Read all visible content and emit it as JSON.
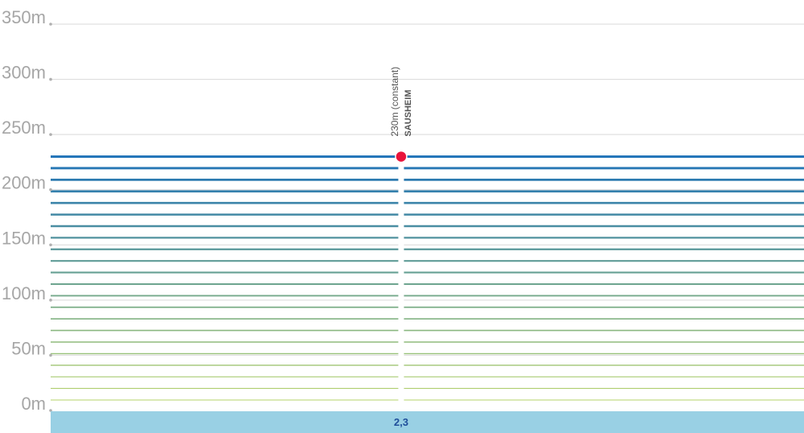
{
  "chart_data": {
    "type": "area",
    "title": "",
    "xlabel": "",
    "ylabel": "",
    "ylim": [
      0,
      350
    ],
    "y_ticks": [
      0,
      50,
      100,
      150,
      200,
      250,
      300,
      350
    ],
    "y_tick_labels": [
      "0m",
      "50m",
      "100m",
      "150m",
      "200m",
      "250m",
      "300m",
      "350m"
    ],
    "grid": true,
    "x_label": "2,3",
    "x_range": [
      0,
      2.3
    ],
    "series": [
      {
        "x": [
          0,
          2.3
        ],
        "y": [
          230,
          230
        ]
      }
    ],
    "annotation": {
      "x": 1.07,
      "y": 230,
      "value_label": "230m (constant)",
      "name": "SAUSHEIM"
    },
    "colors": {
      "grid": "#d9d9d9",
      "tick_label": "#a6a6a6",
      "band_top": "#1f72b8",
      "band_bottom": "#b5d36a",
      "marker": "#e8143c",
      "footer": "#99d0e4",
      "km_label": "#1f4e9a"
    }
  }
}
